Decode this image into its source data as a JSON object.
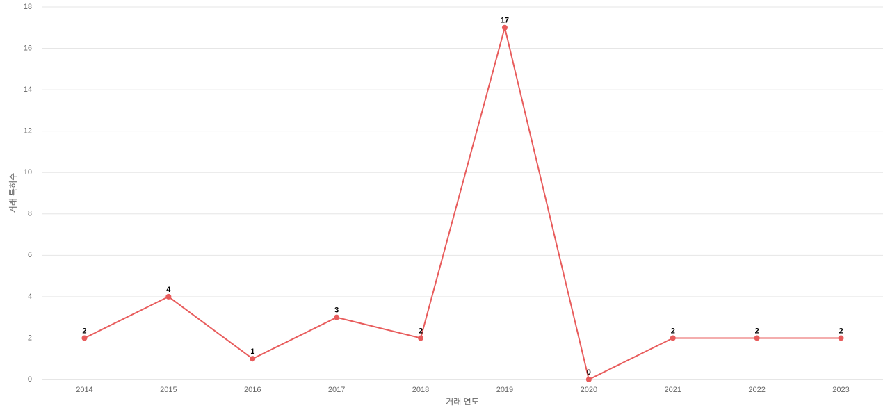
{
  "chart_data": {
    "type": "line",
    "x_label": "거래 연도",
    "y_label": "거래 특허수",
    "categories": [
      "2014",
      "2015",
      "2016",
      "2017",
      "2018",
      "2019",
      "2020",
      "2021",
      "2022",
      "2023"
    ],
    "values": [
      2,
      4,
      1,
      3,
      2,
      17,
      0,
      2,
      2,
      2
    ],
    "color": "#e85c5c",
    "ylim": [
      0,
      18
    ],
    "yticks": [
      0,
      2,
      4,
      6,
      8,
      10,
      12,
      14,
      16,
      18
    ],
    "grid": true
  }
}
